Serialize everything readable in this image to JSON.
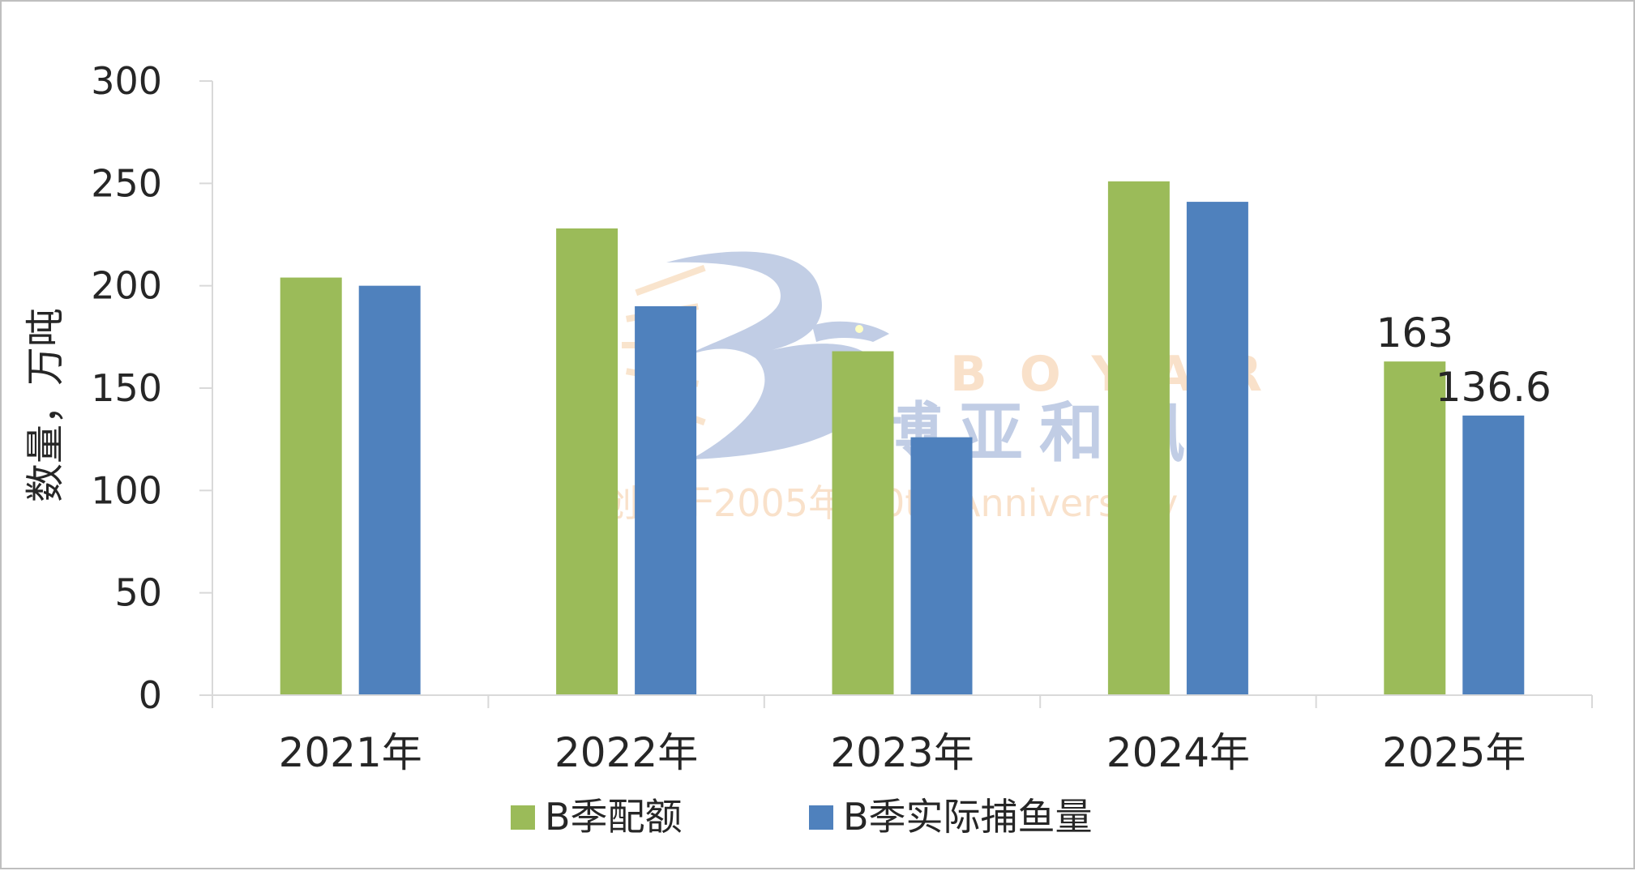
{
  "chart_data": {
    "type": "bar",
    "categories": [
      "2021年",
      "2022年",
      "2023年",
      "2024年",
      "2025年"
    ],
    "series": [
      {
        "name": "B季配额",
        "values": [
          204,
          228,
          168,
          251,
          163
        ],
        "color": "#9bbb59"
      },
      {
        "name": "B季实际捕鱼量",
        "values": [
          200,
          190,
          126,
          241,
          136.6
        ],
        "color": "#4f81bd"
      }
    ],
    "data_labels": [
      {
        "series": 0,
        "category": 4,
        "text": "163"
      },
      {
        "series": 1,
        "category": 4,
        "text": "136.6"
      }
    ],
    "title": "",
    "xlabel": "",
    "ylabel": "数量，万吨",
    "ylim": [
      0,
      300
    ],
    "yticks": [
      0,
      50,
      100,
      150,
      200,
      250,
      300
    ],
    "grid": false,
    "legend_position": "bottom",
    "colors": {
      "axis": "#d9d9d9",
      "text": "#262626",
      "border": "#bfbfbf"
    }
  },
  "watermark": {
    "icon": "bird-b-logo-icon",
    "latin": "BOYAR",
    "cn": "博亚和讯",
    "tagline": "创刊于2005年 20th Anniversary"
  }
}
